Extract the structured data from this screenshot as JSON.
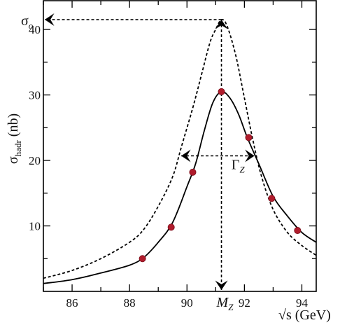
{
  "chart_data": {
    "type": "line",
    "xlabel": "√s (GeV)",
    "ylabel": "σhadr (nb)",
    "xlim": [
      85,
      94.5
    ],
    "ylim": [
      0,
      44.5
    ],
    "x_ticks": [
      86,
      88,
      90,
      92,
      94
    ],
    "y_ticks": [
      10,
      20,
      30,
      40
    ],
    "grid": false,
    "series": [
      {
        "style": "solid",
        "points": [
          [
            85,
            1.2
          ],
          [
            86,
            1.8
          ],
          [
            87,
            2.8
          ],
          [
            88,
            4.0
          ],
          [
            88.5,
            5.2
          ],
          [
            89,
            7.5
          ],
          [
            89.5,
            10.5
          ],
          [
            90,
            16.0
          ],
          [
            90.3,
            19.5
          ],
          [
            90.6,
            24.5
          ],
          [
            90.9,
            28.8
          ],
          [
            91.2,
            30.5
          ],
          [
            91.5,
            29.5
          ],
          [
            91.8,
            27.0
          ],
          [
            92.1,
            23.5
          ],
          [
            92.5,
            19.5
          ],
          [
            93,
            14.5
          ],
          [
            93.5,
            11.5
          ],
          [
            94,
            9.0
          ],
          [
            94.5,
            7.5
          ]
        ]
      },
      {
        "style": "dashed",
        "points": [
          [
            85,
            2.0
          ],
          [
            86,
            3.2
          ],
          [
            87,
            5.0
          ],
          [
            88,
            7.5
          ],
          [
            88.5,
            9.5
          ],
          [
            89,
            13.0
          ],
          [
            89.5,
            17.5
          ],
          [
            89.8,
            22.0
          ],
          [
            90.2,
            28.0
          ],
          [
            90.5,
            33.0
          ],
          [
            90.8,
            38.0
          ],
          [
            91,
            40.0
          ],
          [
            91.2,
            41.5
          ],
          [
            91.4,
            40.5
          ],
          [
            91.7,
            36.0
          ],
          [
            92,
            29.5
          ],
          [
            92.3,
            23.0
          ],
          [
            92.6,
            17.5
          ],
          [
            93,
            12.5
          ],
          [
            93.5,
            9.0
          ],
          [
            94,
            7.0
          ],
          [
            94.5,
            5.5
          ]
        ]
      }
    ],
    "data_points": [
      {
        "x": 88.45,
        "y": 5.0
      },
      {
        "x": 89.45,
        "y": 9.8
      },
      {
        "x": 90.2,
        "y": 18.2
      },
      {
        "x": 91.2,
        "y": 30.5
      },
      {
        "x": 92.15,
        "y": 23.5
      },
      {
        "x": 92.95,
        "y": 14.2
      },
      {
        "x": 93.85,
        "y": 9.3
      }
    ],
    "point_color": "#b01c2c",
    "annotations": {
      "peak_label": "σo",
      "mass_label": "MZ",
      "width_label": "ΓZ",
      "peak_level": 41.5,
      "peak_x": 91.2,
      "half_level": 20.7,
      "half_x_left": 89.8,
      "half_x_right": 92.35
    }
  }
}
